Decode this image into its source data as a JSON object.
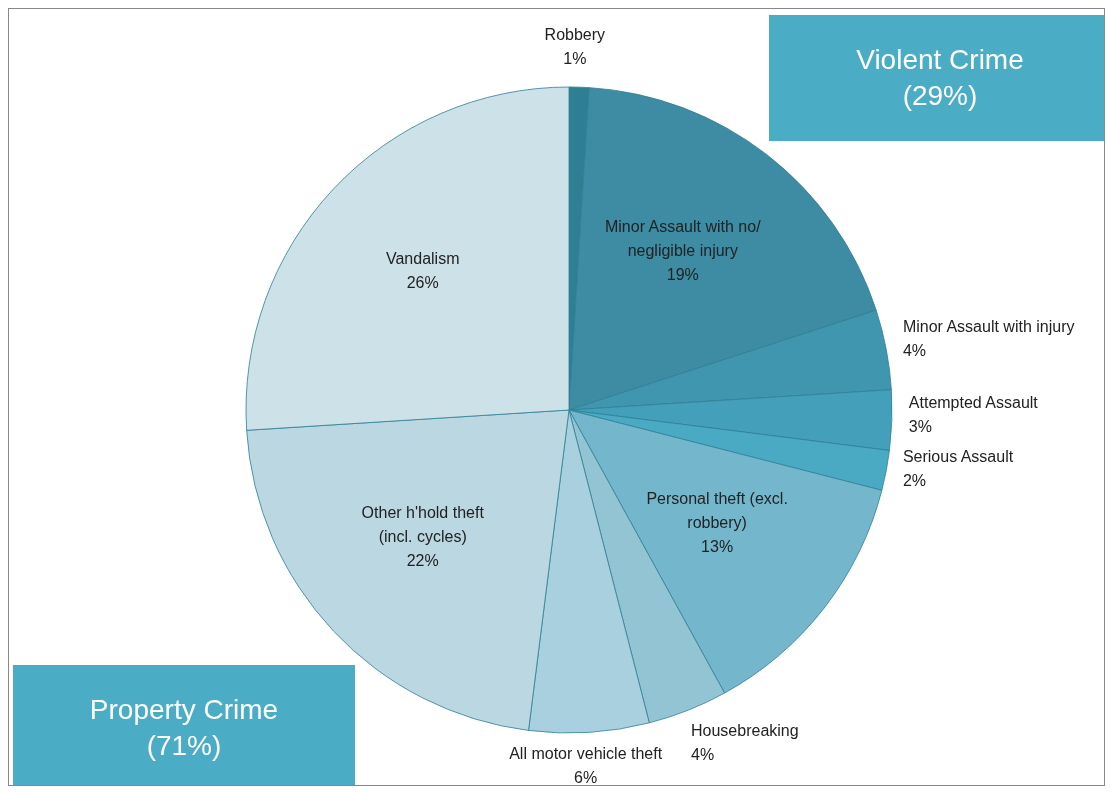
{
  "chart_data": {
    "type": "pie",
    "categories": [
      "Robbery",
      "Minor Assault with no/ negligible injury",
      "Minor Assault with injury",
      "Attempted Assault",
      "Serious Assault",
      "Personal theft (excl. robbery)",
      "Housebreaking",
      "All motor vehicle theft",
      "Other h'hold theft (incl. cycles)",
      "Vandalism"
    ],
    "values": [
      1,
      19,
      4,
      3,
      2,
      13,
      4,
      6,
      22,
      26
    ],
    "value_labels": [
      "1%",
      "19%",
      "4%",
      "3%",
      "2%",
      "13%",
      "4%",
      "6%",
      "22%",
      "26%"
    ],
    "colors": [
      "#2e7f94",
      "#3d8ca3",
      "#4096ae",
      "#44a0ba",
      "#4aaac4",
      "#74b7cd",
      "#93c4d4",
      "#a9d0de",
      "#bad7e2",
      "#cde1e8"
    ],
    "annotations": [
      "Violent Crime\n(29%)",
      "Property Crime\n(71%)"
    ],
    "legend": false
  }
}
